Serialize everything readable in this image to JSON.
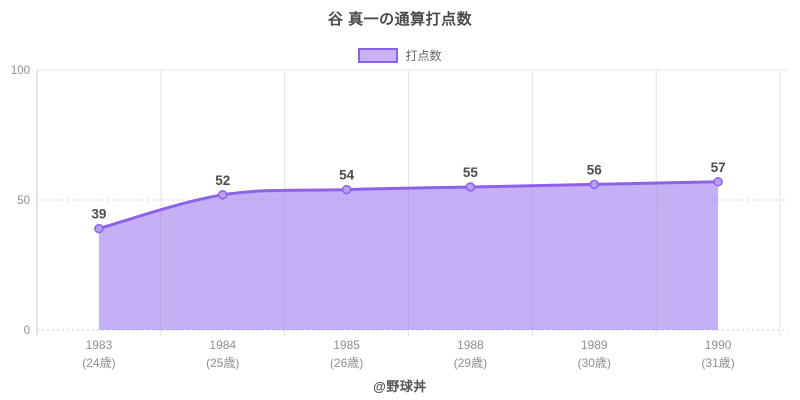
{
  "title": "谷 真一の通算打点数",
  "legend": {
    "label": "打点数"
  },
  "footer": {
    "credit": "@野球丼"
  },
  "colors": {
    "line": "#8d62eb",
    "fill": "rgba(141,98,235,0.5)",
    "marker_fill": "#b79ff2",
    "grid": "#e4e4e4",
    "grid_dashed": "#cccccc",
    "axis_line": "#cccccc",
    "axis_text": "#8f8f8f",
    "value_label": "#4d4d4d"
  },
  "chart_data": {
    "type": "area",
    "title": "谷 真一の通算打点数",
    "series_name": "打点数",
    "categories": [
      "1983",
      "1984",
      "1985",
      "1988",
      "1989",
      "1990"
    ],
    "category_sublabels": [
      "(24歳)",
      "(25歳)",
      "(26歳)",
      "(29歳)",
      "(30歳)",
      "(31歳)"
    ],
    "values": [
      39,
      52,
      54,
      55,
      56,
      57
    ],
    "xlabel": "",
    "ylabel": "",
    "ylim": [
      0,
      100
    ],
    "yticks": [
      0,
      50,
      100
    ],
    "grid": true,
    "legend_position": "top",
    "value_labels_shown": true
  }
}
